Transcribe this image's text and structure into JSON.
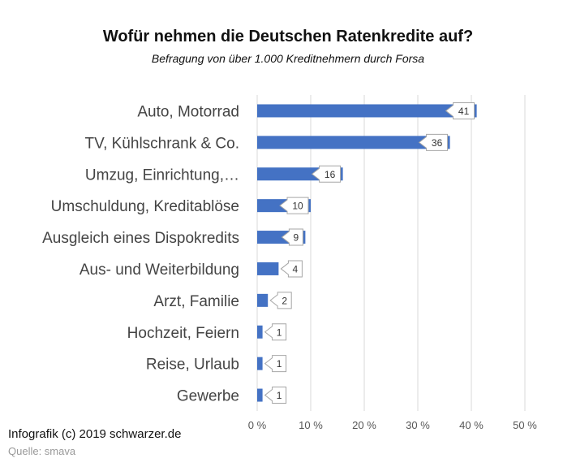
{
  "chart_data": {
    "type": "bar",
    "orientation": "horizontal",
    "title": "Wofür nehmen die Deutschen Ratenkredite auf?",
    "subtitle": "Befragung von über 1.000 Kreditnehmern durch Forsa",
    "categories": [
      "Auto, Motorrad",
      "TV, Kühlschrank & Co.",
      "Umzug, Einrichtung,…",
      "Umschuldung, Kreditablöse",
      "Ausgleich eines Dispokredits",
      "Aus- und Weiterbildung",
      "Arzt, Familie",
      "Hochzeit, Feiern",
      "Reise, Urlaub",
      "Gewerbe"
    ],
    "values": [
      41,
      36,
      16,
      10,
      9,
      4,
      2,
      1,
      1,
      1
    ],
    "data_labels": [
      "41",
      "36",
      "16",
      "10",
      "9",
      "4",
      "2",
      "1",
      "1",
      "1"
    ],
    "xlim": [
      0,
      50
    ],
    "x_ticks": [
      0,
      10,
      20,
      30,
      40,
      50
    ],
    "x_tick_labels": [
      "0 %",
      "10 %",
      "20 %",
      "30 %",
      "40 %",
      "50 %"
    ],
    "grid": true,
    "bar_color": "#4472C4"
  },
  "footer": {
    "credit": "Infografik (c) 2019 schwarzer.de",
    "source": "Quelle: smava"
  }
}
